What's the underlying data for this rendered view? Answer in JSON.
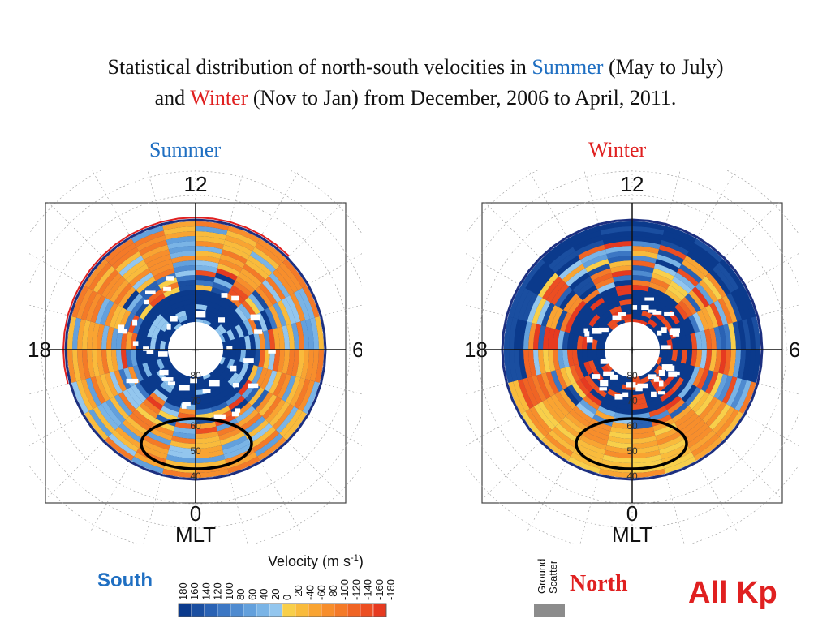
{
  "title": {
    "line1_pre": "Statistical distribution of north-south velocities in ",
    "line1_summer": "Summer",
    "line1_post": " (May to July)",
    "line2_pre": "and ",
    "line2_winter": "Winter",
    "line2_post": " (Nov to Jan) from December, 2006 to April, 2011."
  },
  "panels": {
    "summer": {
      "label": "Summer",
      "label_color": "#1f6fc2"
    },
    "winter": {
      "label": "Winter",
      "label_color": "#e02020"
    }
  },
  "dial": {
    "top": "12",
    "bottom": "0",
    "left": "18",
    "right": "6",
    "axis_name": "MLT",
    "center_mark": "+",
    "lat_labels": [
      "80",
      "70",
      "60",
      "50",
      "40"
    ]
  },
  "colorbar": {
    "title": "Velocity (m s",
    "title_sup": "-1",
    "title_end": ")",
    "ticks": [
      "180",
      "160",
      "140",
      "120",
      "100",
      "80",
      "60",
      "40",
      "20",
      "0",
      "-20",
      "-40",
      "-60",
      "-80",
      "-100",
      "-120",
      "-140",
      "-160",
      "-180"
    ],
    "colors": [
      "#0b3a8c",
      "#1a4ea0",
      "#2a62b4",
      "#3c77c4",
      "#4f8bd0",
      "#63a0dc",
      "#7ab4e6",
      "#93c6ee",
      "#f8cf4a",
      "#f9bb3c",
      "#f9a432",
      "#f78e2c",
      "#f47a28",
      "#f06424",
      "#ec4e22",
      "#e63a20"
    ],
    "ground_label_1": "Ground",
    "ground_label_2": "Scatter",
    "ground_color": "#8c8c8c"
  },
  "legend_labels": {
    "south": "South",
    "north": "North",
    "allkp": "All Kp"
  }
}
